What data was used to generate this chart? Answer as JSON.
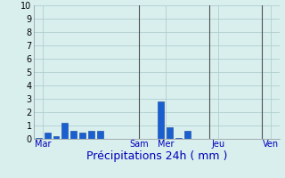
{
  "xlabel": "Précipitations 24h ( mm )",
  "ylim": [
    0,
    10
  ],
  "yticks": [
    0,
    1,
    2,
    3,
    4,
    5,
    6,
    7,
    8,
    9,
    10
  ],
  "background_color": "#d8efee",
  "grid_color": "#b0cece",
  "bar_color": "#1a5fcf",
  "bar_edge_color": "#1040a0",
  "x_values": [
    0,
    1,
    2,
    3,
    4,
    5,
    6,
    7,
    8,
    9,
    10,
    11,
    12,
    13,
    14,
    15,
    16,
    17,
    18,
    19,
    20,
    21,
    22,
    23,
    24,
    25,
    26,
    27
  ],
  "bar_heights": [
    0.1,
    0.5,
    0.2,
    1.2,
    0.6,
    0.5,
    0.6,
    0.6,
    0,
    0,
    0,
    0,
    0,
    0,
    2.8,
    0.9,
    0.1,
    0.6,
    0,
    0,
    0,
    0,
    0,
    0,
    0,
    0,
    0,
    0
  ],
  "day_labels": [
    "Mar",
    "Sam",
    "Mer",
    "Jeu",
    "Ven"
  ],
  "day_tick_positions": [
    0.5,
    11.5,
    14.5,
    20.5,
    26.5
  ],
  "vline_positions": [
    11.5,
    19.5,
    25.5
  ],
  "vline_color": "#505050",
  "xlabel_color": "#0000bb",
  "tick_label_color": "#0000bb",
  "ytick_label_color": "#000000",
  "xlabel_fontsize": 9,
  "ytick_fontsize": 7,
  "xtick_fontsize": 7
}
